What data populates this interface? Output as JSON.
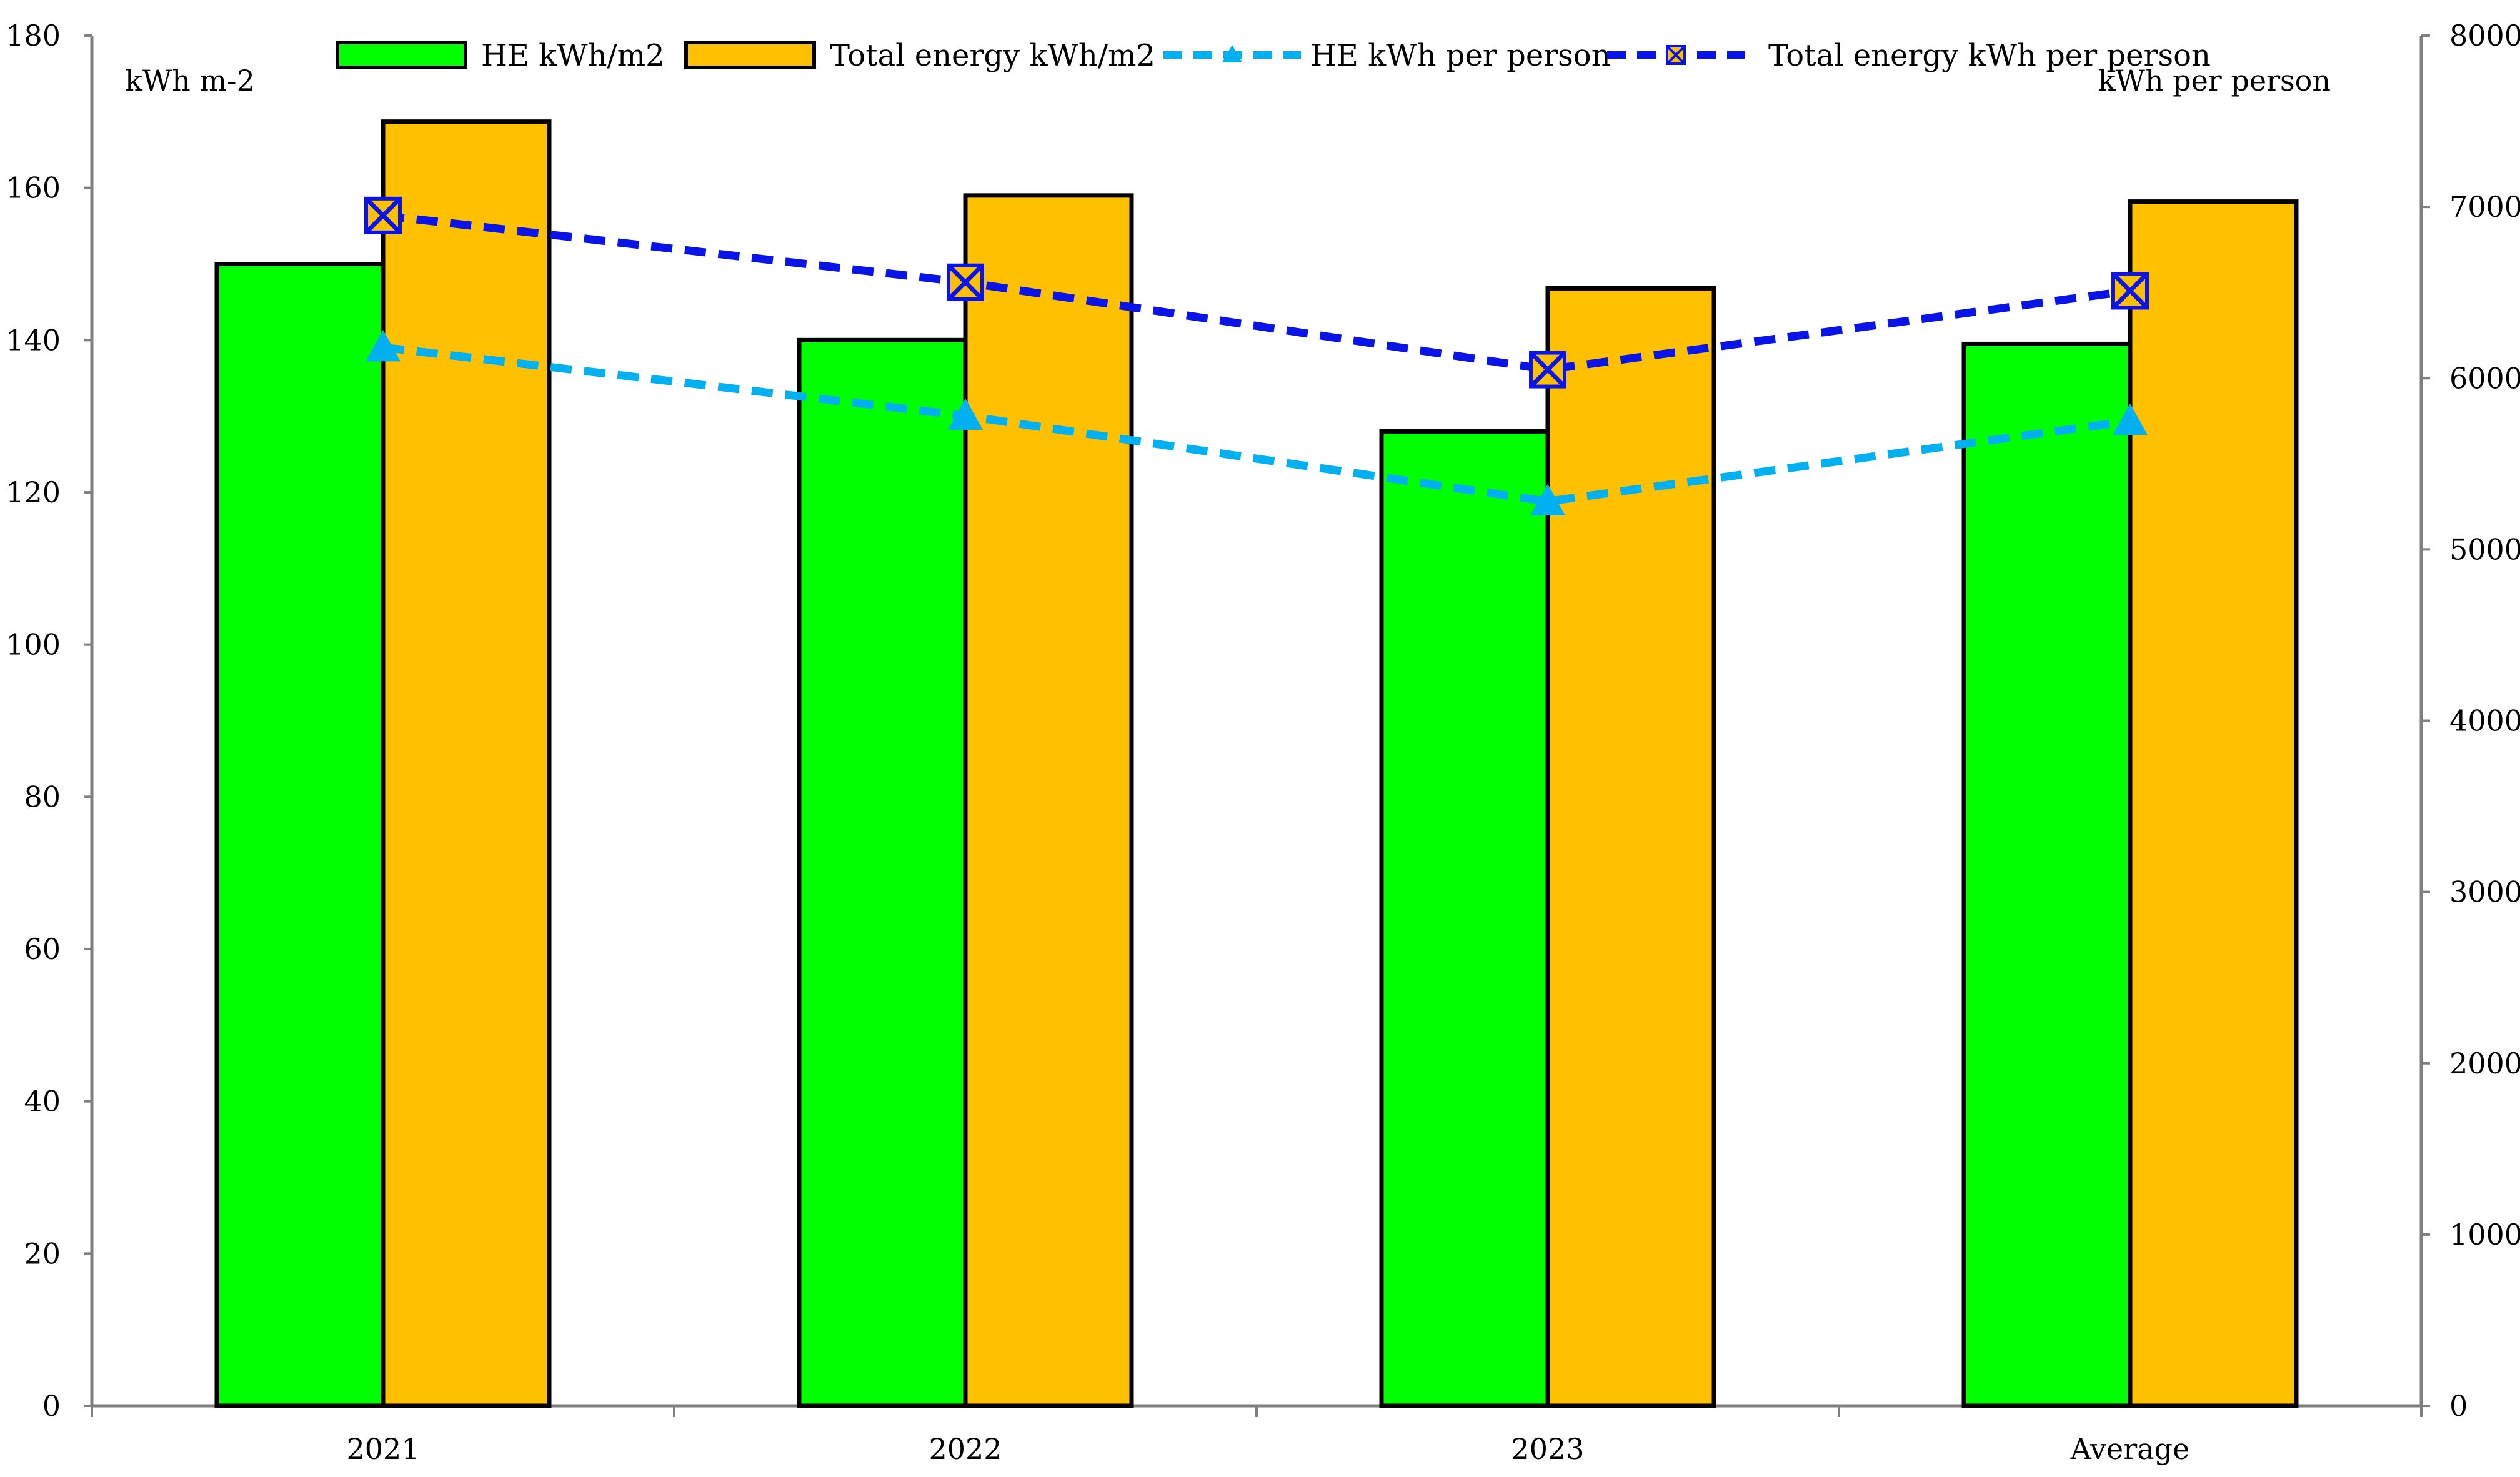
{
  "chart_data": {
    "type": "bar",
    "categories": [
      "2021",
      "2022",
      "2023",
      "Average"
    ],
    "series": [
      {
        "name": "HE kWh/m2",
        "kind": "bar",
        "axis": "left",
        "color": "#00ff00",
        "values": [
          150,
          140,
          128,
          139.5
        ]
      },
      {
        "name": "Total energy kWh/m2",
        "kind": "bar",
        "axis": "left",
        "color": "#ffc000",
        "values": [
          168.7,
          159,
          146.8,
          158.2
        ]
      },
      {
        "name": "HE kWh per person",
        "kind": "line",
        "axis": "right",
        "color": "#00b0f0",
        "marker": "triangle",
        "values": [
          6180,
          5780,
          5280,
          5750
        ]
      },
      {
        "name": "Total energy kWh per person",
        "kind": "line",
        "axis": "right",
        "color": "#0a14e6",
        "marker": "x-square",
        "values": [
          6950,
          6560,
          6050,
          6510
        ]
      }
    ],
    "left_axis": {
      "label": "kWh m-2",
      "ylim": [
        0,
        180
      ],
      "ticks": [
        "0",
        "20",
        "40",
        "60",
        "80",
        "100",
        "120",
        "140",
        "160",
        "180"
      ]
    },
    "right_axis": {
      "label": "kWh per person",
      "ylim": [
        0,
        8000
      ],
      "ticks": [
        "0",
        "1000",
        "2000",
        "3000",
        "4000",
        "5000",
        "6000",
        "7000",
        "8000"
      ]
    },
    "legend_placement": "top",
    "grid": false
  }
}
